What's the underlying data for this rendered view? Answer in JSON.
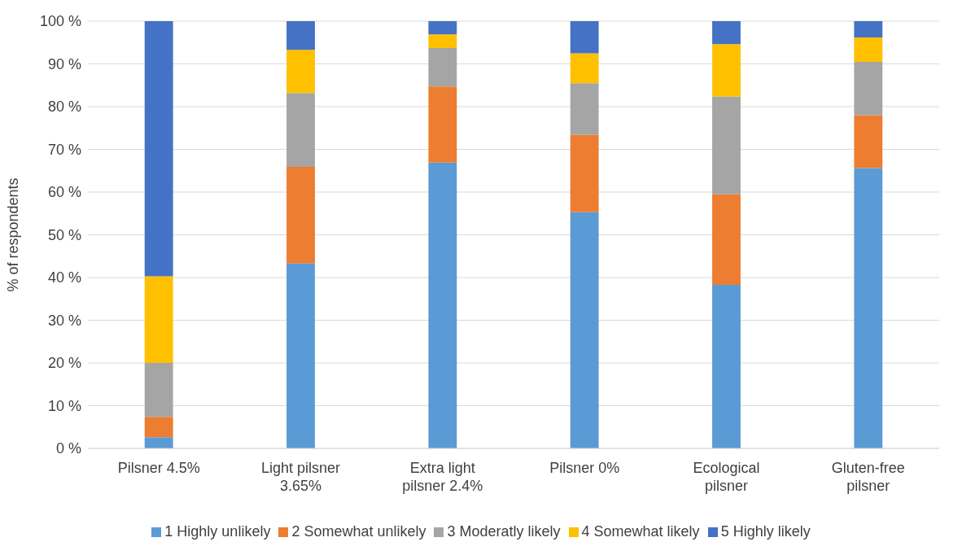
{
  "chart_data": {
    "type": "bar",
    "stacked": true,
    "ylabel": "% of respondents",
    "categories": [
      "Pilsner 4.5%",
      "Light pilsner 3.65%",
      "Extra light pilsner 2.4%",
      "Pilsner 0%",
      "Ecological pilsner",
      "Gluten-free pilsner"
    ],
    "series": [
      {
        "name": "1 Highly unlikely",
        "color": "#5b9bd5",
        "values": [
          2.6,
          43.3,
          66.9,
          55.3,
          38.3,
          65.6
        ]
      },
      {
        "name": "2 Somewhat unlikely",
        "color": "#ed7d31",
        "values": [
          4.8,
          22.6,
          17.8,
          18.1,
          21.2,
          12.4
        ]
      },
      {
        "name": "3 Moderatly likely",
        "color": "#a5a5a5",
        "values": [
          12.6,
          17.3,
          9.0,
          12.1,
          22.9,
          12.5
        ]
      },
      {
        "name": "4 Somewhat likely",
        "color": "#ffc000",
        "values": [
          20.3,
          10.1,
          3.2,
          7.0,
          12.2,
          5.7
        ]
      },
      {
        "name": "5 Highly likely",
        "color": "#4472c4",
        "values": [
          59.7,
          6.7,
          3.1,
          7.5,
          5.4,
          3.8
        ]
      }
    ],
    "ylim": [
      0,
      100
    ],
    "yticks": [
      {
        "value": 0,
        "label": "0 %"
      },
      {
        "value": 10,
        "label": "10 %"
      },
      {
        "value": 20,
        "label": "20 %"
      },
      {
        "value": 30,
        "label": "30 %"
      },
      {
        "value": 40,
        "label": "40 %"
      },
      {
        "value": 50,
        "label": "50 %"
      },
      {
        "value": 60,
        "label": "60 %"
      },
      {
        "value": 70,
        "label": "70 %"
      },
      {
        "value": 80,
        "label": "80 %"
      },
      {
        "value": 90,
        "label": "90 %"
      },
      {
        "value": 100,
        "label": "100 %"
      }
    ],
    "grid": "y",
    "legend": "bottom"
  }
}
